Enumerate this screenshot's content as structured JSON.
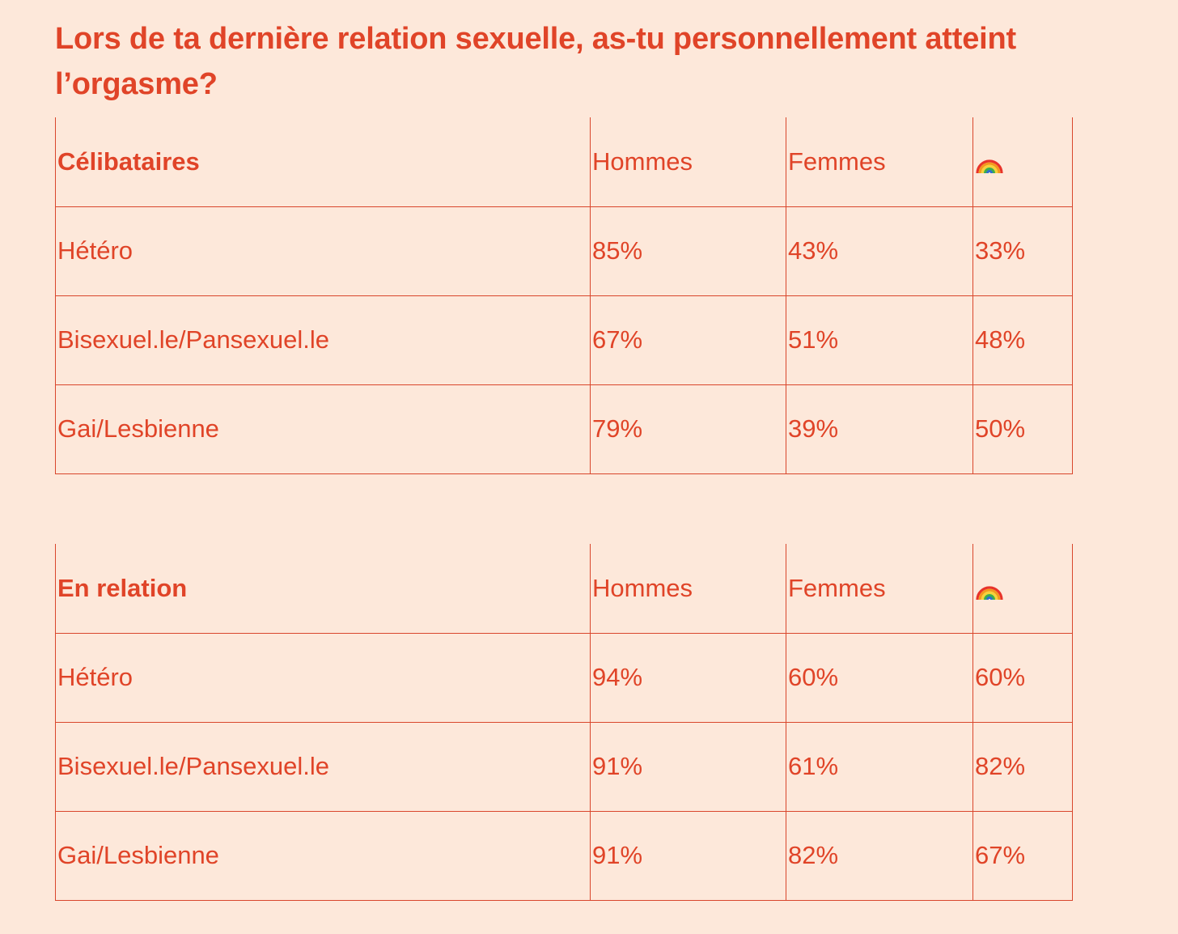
{
  "title": "Lors de ta dernière relation sexuelle, as-tu personnellement atteint l’orgasme?",
  "colors": {
    "background": "#fde8da",
    "accent": "#e04428",
    "rule": "#d9462c"
  },
  "chart_data": [
    {
      "type": "table",
      "group": "Célibataires",
      "columns": [
        "Hommes",
        "Femmes",
        "rainbow-icon"
      ],
      "rows": [
        {
          "label": "Hétéro",
          "values": [
            "85%",
            "43%",
            "33%"
          ]
        },
        {
          "label": "Bisexuel.le/Pansexuel.le",
          "values": [
            "67%",
            "51%",
            "48%"
          ]
        },
        {
          "label": "Gai/Lesbienne",
          "values": [
            "79%",
            "39%",
            "50%"
          ]
        }
      ]
    },
    {
      "type": "table",
      "group": "En relation",
      "columns": [
        "Hommes",
        "Femmes",
        "rainbow-icon"
      ],
      "rows": [
        {
          "label": "Hétéro",
          "values": [
            "94%",
            "60%",
            "60%"
          ]
        },
        {
          "label": "Bisexuel.le/Pansexuel.le",
          "values": [
            "91%",
            "61%",
            "82%"
          ]
        },
        {
          "label": "Gai/Lesbienne",
          "values": [
            "91%",
            "82%",
            "67%"
          ]
        }
      ]
    }
  ]
}
